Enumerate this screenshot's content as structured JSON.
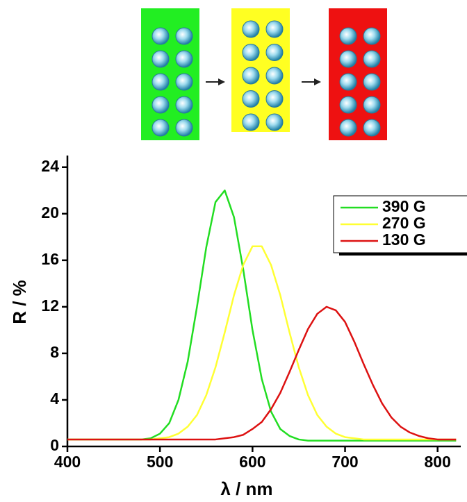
{
  "chart_data": {
    "type": "line",
    "x_label": "λ / nm",
    "y_label": "R / %",
    "x": [
      400,
      410,
      420,
      430,
      440,
      450,
      460,
      470,
      480,
      490,
      500,
      510,
      520,
      530,
      540,
      550,
      560,
      570,
      580,
      590,
      600,
      610,
      620,
      630,
      640,
      650,
      660,
      670,
      680,
      690,
      700,
      710,
      720,
      730,
      740,
      750,
      760,
      770,
      780,
      790,
      800,
      810,
      820
    ],
    "series": [
      {
        "name": "390 G",
        "color": "#22dd22",
        "values": [
          0.6,
          0.6,
          0.6,
          0.6,
          0.6,
          0.6,
          0.6,
          0.6,
          0.6,
          0.7,
          1.1,
          2.0,
          4.0,
          7.3,
          12.0,
          17.1,
          21.0,
          22.0,
          19.7,
          15.2,
          10.0,
          5.8,
          3.0,
          1.5,
          0.9,
          0.6,
          0.5,
          0.5,
          0.5,
          0.5,
          0.5,
          0.5,
          0.5,
          0.5,
          0.5,
          0.5,
          0.5,
          0.5,
          0.5,
          0.5,
          0.5,
          0.5,
          0.5
        ]
      },
      {
        "name": "270 G",
        "color": "#ffff33",
        "values": [
          0.6,
          0.6,
          0.6,
          0.6,
          0.6,
          0.6,
          0.6,
          0.6,
          0.6,
          0.6,
          0.7,
          0.8,
          1.1,
          1.7,
          2.7,
          4.4,
          6.8,
          9.8,
          13.0,
          15.6,
          17.2,
          17.2,
          15.6,
          13.0,
          9.8,
          6.8,
          4.4,
          2.7,
          1.7,
          1.1,
          0.8,
          0.7,
          0.6,
          0.6,
          0.6,
          0.6,
          0.6,
          0.6,
          0.6,
          0.6,
          0.6,
          0.6,
          0.6
        ]
      },
      {
        "name": "130 G",
        "color": "#dd1111",
        "values": [
          0.6,
          0.6,
          0.6,
          0.6,
          0.6,
          0.6,
          0.6,
          0.6,
          0.6,
          0.6,
          0.6,
          0.6,
          0.6,
          0.6,
          0.6,
          0.6,
          0.6,
          0.7,
          0.8,
          1.0,
          1.5,
          2.1,
          3.2,
          4.6,
          6.4,
          8.3,
          10.1,
          11.4,
          12.0,
          11.7,
          10.7,
          9.0,
          7.1,
          5.3,
          3.7,
          2.5,
          1.7,
          1.2,
          0.9,
          0.7,
          0.6,
          0.6,
          0.6
        ]
      }
    ],
    "xlim": [
      400,
      825
    ],
    "xticks": [
      400,
      500,
      600,
      700,
      800
    ],
    "ylim": [
      0,
      25
    ],
    "yticks": [
      0,
      4,
      8,
      12,
      16,
      20,
      24
    ],
    "legend": "upper right",
    "grid": false
  }
}
